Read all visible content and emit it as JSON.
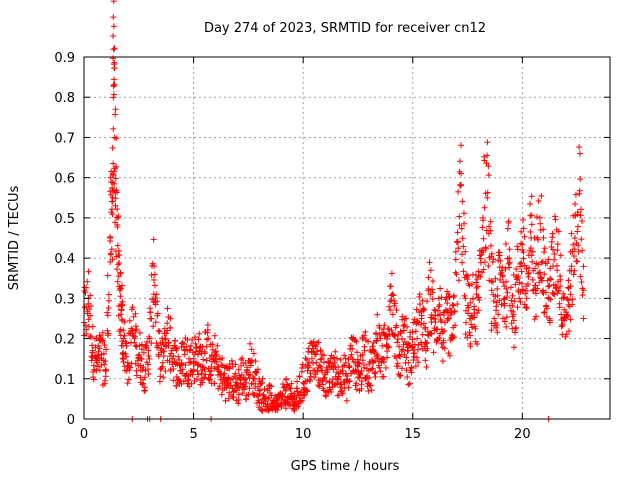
{
  "chart_data": {
    "type": "scatter",
    "title": "Day 274 of 2023, SRMTID for receiver cn12",
    "xlabel": "GPS time / hours",
    "ylabel": "SRMTID / TECUs",
    "xlim": [
      0,
      24
    ],
    "ylim": [
      0,
      0.9
    ],
    "xticks": [
      0,
      5,
      10,
      15,
      20
    ],
    "yticks": [
      0,
      0.1,
      0.2,
      0.3,
      0.4,
      0.5,
      0.6,
      0.7,
      0.8,
      0.9
    ],
    "xtick_labels": [
      "0",
      "5",
      "10",
      "15",
      "20"
    ],
    "ytick_labels": [
      "0",
      "0.1",
      "0.2",
      "0.3",
      "0.4",
      "0.5",
      "0.6",
      "0.7",
      "0.8",
      "0.9"
    ],
    "grid": true,
    "marker": "+",
    "color": "#ff0000",
    "series": [
      {
        "name": "SRMTID",
        "x": [
          0.0,
          0.2,
          0.4,
          0.6,
          0.8,
          1.0,
          1.2,
          1.3,
          1.35,
          1.4,
          1.5,
          1.6,
          1.7,
          1.8,
          2.0,
          2.2,
          2.4,
          2.6,
          2.8,
          3.0,
          3.2,
          3.4,
          3.6,
          3.8,
          4.0,
          4.2,
          4.4,
          4.6,
          4.8,
          5.0,
          5.2,
          5.4,
          5.6,
          5.8,
          6.0,
          6.2,
          6.4,
          6.6,
          6.8,
          7.0,
          7.2,
          7.4,
          7.6,
          7.8,
          8.0,
          8.2,
          8.4,
          8.6,
          8.8,
          9.0,
          9.2,
          9.4,
          9.6,
          9.8,
          10.0,
          10.2,
          10.4,
          10.6,
          10.8,
          11.0,
          11.2,
          11.4,
          11.6,
          11.8,
          12.0,
          12.2,
          12.4,
          12.6,
          12.8,
          13.0,
          13.2,
          13.4,
          13.6,
          13.8,
          14.0,
          14.2,
          14.4,
          14.6,
          14.8,
          15.0,
          15.2,
          15.4,
          15.6,
          15.8,
          16.0,
          16.2,
          16.4,
          16.6,
          16.8,
          17.0,
          17.2,
          17.4,
          17.6,
          17.8,
          18.0,
          18.2,
          18.4,
          18.6,
          18.8,
          19.0,
          19.2,
          19.4,
          19.6,
          19.8,
          20.0,
          20.2,
          20.4,
          20.6,
          20.8,
          21.0,
          21.2,
          21.4,
          21.6,
          21.8,
          22.0,
          22.2,
          22.4,
          22.6,
          22.8
        ],
        "y": [
          0.24,
          0.3,
          0.17,
          0.14,
          0.16,
          0.12,
          0.45,
          0.55,
          0.83,
          0.7,
          0.5,
          0.33,
          0.27,
          0.2,
          0.14,
          0.22,
          0.18,
          0.15,
          0.12,
          0.2,
          0.38,
          0.16,
          0.14,
          0.22,
          0.17,
          0.14,
          0.12,
          0.16,
          0.14,
          0.15,
          0.16,
          0.13,
          0.18,
          0.12,
          0.15,
          0.11,
          0.1,
          0.09,
          0.1,
          0.08,
          0.11,
          0.09,
          0.14,
          0.1,
          0.07,
          0.06,
          0.05,
          0.04,
          0.03,
          0.04,
          0.07,
          0.05,
          0.04,
          0.06,
          0.09,
          0.12,
          0.15,
          0.14,
          0.13,
          0.11,
          0.09,
          0.13,
          0.1,
          0.12,
          0.09,
          0.16,
          0.14,
          0.11,
          0.17,
          0.12,
          0.14,
          0.2,
          0.15,
          0.18,
          0.33,
          0.21,
          0.16,
          0.22,
          0.14,
          0.18,
          0.2,
          0.25,
          0.17,
          0.31,
          0.22,
          0.28,
          0.19,
          0.25,
          0.2,
          0.36,
          0.58,
          0.3,
          0.25,
          0.28,
          0.27,
          0.5,
          0.55,
          0.32,
          0.27,
          0.36,
          0.3,
          0.4,
          0.26,
          0.35,
          0.42,
          0.3,
          0.45,
          0.32,
          0.5,
          0.36,
          0.3,
          0.38,
          0.42,
          0.3,
          0.26,
          0.33,
          0.45,
          0.56,
          0.32
        ]
      }
    ],
    "outliers_zero": [
      2.2,
      2.9,
      3.0,
      3.5,
      5.8,
      21.2
    ]
  }
}
